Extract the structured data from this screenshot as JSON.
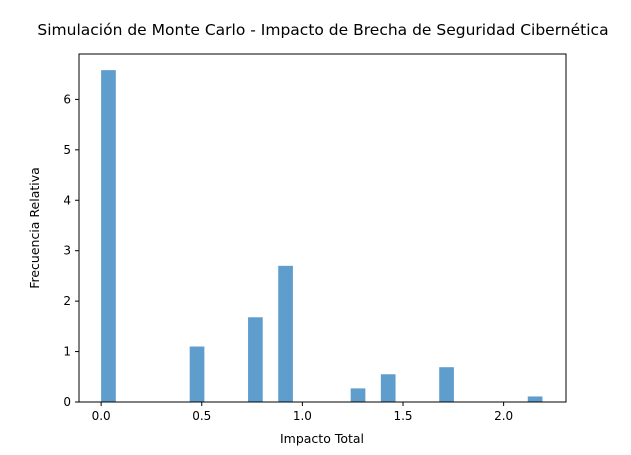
{
  "chart_data": {
    "type": "bar",
    "title": "Simulación de Monte Carlo - Impacto de Brecha de Seguridad Cibernética",
    "xlabel": "Impacto Total",
    "ylabel": "Frecuencia Relativa",
    "bar_color": "#5f9ecc",
    "grid": false,
    "xlim": [
      -0.11,
      2.31
    ],
    "ylim": [
      0,
      6.9
    ],
    "x_ticks": [
      {
        "value": 0.0,
        "label": "0.0"
      },
      {
        "value": 0.5,
        "label": "0.5"
      },
      {
        "value": 1.0,
        "label": "1.0"
      },
      {
        "value": 1.5,
        "label": "1.5"
      },
      {
        "value": 2.0,
        "label": "2.0"
      }
    ],
    "y_ticks": [
      {
        "value": 0,
        "label": "0"
      },
      {
        "value": 1,
        "label": "1"
      },
      {
        "value": 2,
        "label": "2"
      },
      {
        "value": 3,
        "label": "3"
      },
      {
        "value": 4,
        "label": "4"
      },
      {
        "value": 5,
        "label": "5"
      },
      {
        "value": 6,
        "label": "6"
      }
    ],
    "bin_width": 0.073,
    "bins": [
      {
        "x0": 0.0,
        "value": 6.58
      },
      {
        "x0": 0.44,
        "value": 1.1
      },
      {
        "x0": 0.73,
        "value": 1.68
      },
      {
        "x0": 0.88,
        "value": 2.7
      },
      {
        "x0": 1.24,
        "value": 0.27
      },
      {
        "x0": 1.39,
        "value": 0.55
      },
      {
        "x0": 1.68,
        "value": 0.69
      },
      {
        "x0": 2.12,
        "value": 0.11
      }
    ]
  }
}
